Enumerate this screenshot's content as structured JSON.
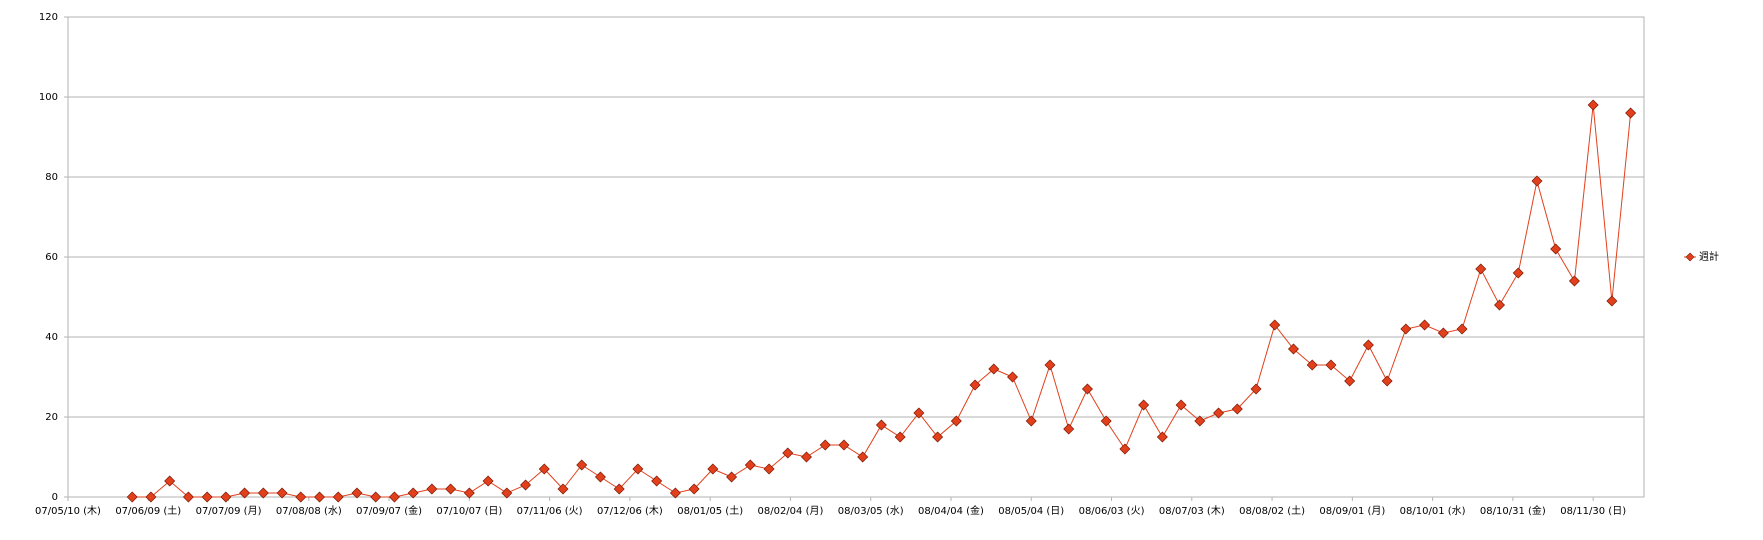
{
  "chart_data": {
    "type": "line",
    "x": [
      "07/06/03",
      "07/06/10",
      "07/06/17",
      "07/06/24",
      "07/07/01",
      "07/07/08",
      "07/07/15",
      "07/07/22",
      "07/07/29",
      "07/08/05",
      "07/08/12",
      "07/08/19",
      "07/08/26",
      "07/09/02",
      "07/09/09",
      "07/09/16",
      "07/09/23",
      "07/09/30",
      "07/10/07",
      "07/10/14",
      "07/10/21",
      "07/10/28",
      "07/11/04",
      "07/11/11",
      "07/11/18",
      "07/11/25",
      "07/12/02",
      "07/12/09",
      "07/12/16",
      "07/12/23",
      "07/12/30",
      "08/01/06",
      "08/01/13",
      "08/01/20",
      "08/01/27",
      "08/02/03",
      "08/02/10",
      "08/02/17",
      "08/02/24",
      "08/03/02",
      "08/03/09",
      "08/03/16",
      "08/03/23",
      "08/03/30",
      "08/04/06",
      "08/04/13",
      "08/04/20",
      "08/04/27",
      "08/05/04",
      "08/05/11",
      "08/05/18",
      "08/05/25",
      "08/06/01",
      "08/06/08",
      "08/06/15",
      "08/06/22",
      "08/06/29",
      "08/07/06",
      "08/07/13",
      "08/07/20",
      "08/07/27",
      "08/08/03",
      "08/08/10",
      "08/08/17",
      "08/08/24",
      "08/08/31",
      "08/09/07",
      "08/09/14",
      "08/09/21",
      "08/09/28",
      "08/10/05",
      "08/10/12",
      "08/10/19",
      "08/10/26",
      "08/11/02",
      "08/11/09",
      "08/11/16",
      "08/11/23",
      "08/11/30",
      "08/12/07",
      "08/12/14"
    ],
    "series": [
      {
        "name": "週計",
        "color": "#e2401c",
        "values": [
          0,
          0,
          4,
          0,
          0,
          0,
          1,
          1,
          1,
          0,
          0,
          0,
          1,
          0,
          0,
          1,
          2,
          2,
          1,
          4,
          1,
          3,
          7,
          2,
          8,
          5,
          2,
          7,
          4,
          1,
          2,
          7,
          5,
          8,
          7,
          11,
          10,
          13,
          13,
          10,
          18,
          15,
          21,
          15,
          19,
          28,
          32,
          30,
          19,
          33,
          17,
          27,
          19,
          12,
          23,
          15,
          23,
          19,
          21,
          22,
          27,
          43,
          37,
          33,
          33,
          29,
          38,
          29,
          42,
          43,
          41,
          42,
          57,
          48,
          56,
          79,
          62,
          54,
          98,
          49,
          96
        ]
      }
    ],
    "xlim": [
      "07/05/10",
      "08/12/19"
    ],
    "xticks": [
      {
        "value": "07/05/10",
        "label": "07/05/10 (木)"
      },
      {
        "value": "07/06/09",
        "label": "07/06/09 (土)"
      },
      {
        "value": "07/07/09",
        "label": "07/07/09 (月)"
      },
      {
        "value": "07/08/08",
        "label": "07/08/08 (水)"
      },
      {
        "value": "07/09/07",
        "label": "07/09/07 (金)"
      },
      {
        "value": "07/10/07",
        "label": "07/10/07 (日)"
      },
      {
        "value": "07/11/06",
        "label": "07/11/06 (火)"
      },
      {
        "value": "07/12/06",
        "label": "07/12/06 (木)"
      },
      {
        "value": "08/01/05",
        "label": "08/01/05 (土)"
      },
      {
        "value": "08/02/04",
        "label": "08/02/04 (月)"
      },
      {
        "value": "08/03/05",
        "label": "08/03/05 (水)"
      },
      {
        "value": "08/04/04",
        "label": "08/04/04 (金)"
      },
      {
        "value": "08/05/04",
        "label": "08/05/04 (日)"
      },
      {
        "value": "08/06/03",
        "label": "08/06/03 (火)"
      },
      {
        "value": "08/07/03",
        "label": "08/07/03 (木)"
      },
      {
        "value": "08/08/02",
        "label": "08/08/02 (土)"
      },
      {
        "value": "08/09/01",
        "label": "08/09/01 (月)"
      },
      {
        "value": "08/10/01",
        "label": "08/10/01 (水)"
      },
      {
        "value": "08/10/31",
        "label": "08/10/31 (金)"
      },
      {
        "value": "08/11/30",
        "label": "08/11/30 (日)"
      }
    ],
    "ylim": [
      0,
      120
    ],
    "yticks": [
      0,
      20,
      40,
      60,
      80,
      100,
      120
    ],
    "grid": true,
    "legend": "right"
  }
}
